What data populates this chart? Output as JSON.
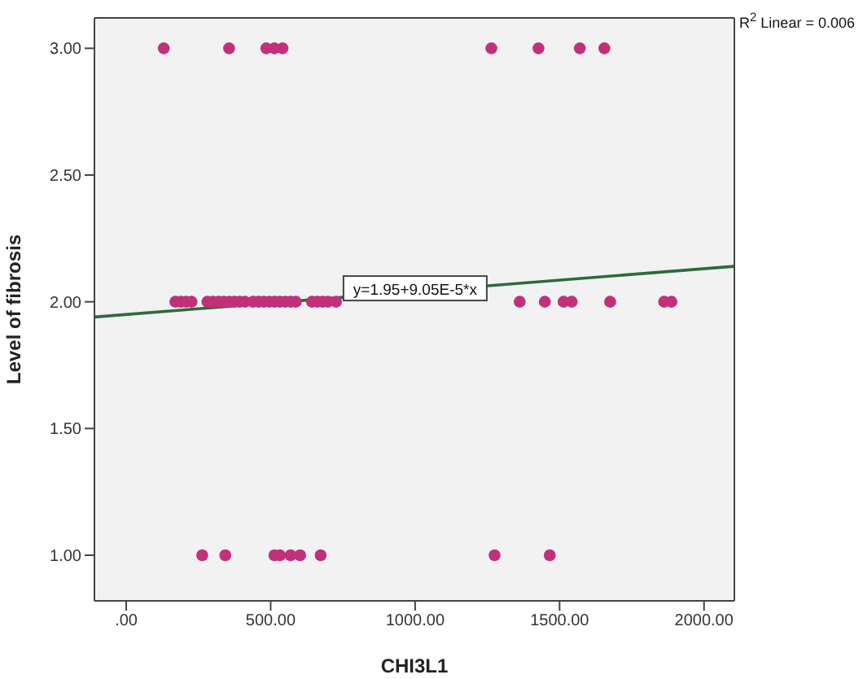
{
  "chart_data": {
    "type": "scatter",
    "xlabel": "CHI3L1",
    "ylabel": "Level of fibrosis",
    "xlim": [
      -110,
      2105
    ],
    "ylim": [
      0.82,
      3.12
    ],
    "xticks": [
      {
        "value": 0,
        "label": ".00"
      },
      {
        "value": 500,
        "label": "500.00"
      },
      {
        "value": 1000,
        "label": "1000.00"
      },
      {
        "value": 1500,
        "label": "1500.00"
      },
      {
        "value": 2000,
        "label": "2000.00"
      }
    ],
    "yticks": [
      {
        "value": 1,
        "label": "1.00"
      },
      {
        "value": 1.5,
        "label": "1.50"
      },
      {
        "value": 2,
        "label": "2.00"
      },
      {
        "value": 2.5,
        "label": "2.50"
      },
      {
        "value": 3,
        "label": "3.00"
      }
    ],
    "legend": false,
    "series": [
      {
        "marker": "circle",
        "color": "#c2307a",
        "x": [
          130,
          356,
          485,
          513,
          541,
          1264,
          1427,
          1570,
          1655,
          263,
          343,
          513,
          532,
          569,
          602,
          673,
          1275,
          1466,
          170,
          189,
          207,
          226,
          281,
          300,
          319,
          337,
          356,
          374,
          393,
          411,
          439,
          458,
          476,
          495,
          513,
          532,
          550,
          569,
          587,
          643,
          662,
          680,
          698,
          726,
          1362,
          1449,
          1514,
          1542,
          1675,
          1862,
          1887
        ],
        "values": [
          3,
          3,
          3,
          3,
          3,
          3,
          3,
          3,
          3,
          1,
          1,
          1,
          1,
          1,
          1,
          1,
          1,
          1,
          2,
          2,
          2,
          2,
          2,
          2,
          2,
          2,
          2,
          2,
          2,
          2,
          2,
          2,
          2,
          2,
          2,
          2,
          2,
          2,
          2,
          2,
          2,
          2,
          2,
          2,
          2,
          2,
          2,
          2,
          2,
          2,
          2
        ]
      },
      {
        "type": "line",
        "color": "#2d6a3a",
        "x": [
          -110,
          2105
        ],
        "values": [
          1.94,
          2.14
        ]
      }
    ],
    "annotations": [
      {
        "text": "y=1.95+9.05E-5*x",
        "x": 1000,
        "y": 2.05
      },
      "R$^{2}$ Linear = 0.006"
    ]
  }
}
